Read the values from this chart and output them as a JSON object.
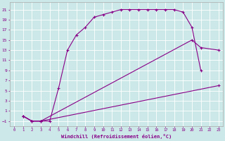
{
  "xlabel": "Windchill (Refroidissement éolien,°C)",
  "bg_color": "#cce8e8",
  "line_color": "#880088",
  "xlim": [
    -0.5,
    23.5
  ],
  "ylim": [
    -2,
    22.5
  ],
  "xticks": [
    0,
    1,
    2,
    3,
    4,
    5,
    6,
    7,
    8,
    9,
    10,
    11,
    12,
    13,
    14,
    15,
    16,
    17,
    18,
    19,
    20,
    21,
    22,
    23
  ],
  "yticks": [
    -1,
    1,
    3,
    5,
    7,
    9,
    11,
    13,
    15,
    17,
    19,
    21
  ],
  "curve1_x": [
    1,
    2,
    3,
    4,
    5,
    6,
    7,
    8,
    9,
    10,
    11,
    12,
    13,
    14,
    15,
    16,
    17,
    18,
    19,
    20,
    21
  ],
  "curve1_y": [
    0,
    -1,
    -1,
    -1,
    5.5,
    13,
    16,
    17.5,
    19.5,
    20,
    20.5,
    21,
    21,
    21,
    21,
    21,
    21,
    21,
    20.5,
    17.5,
    9
  ],
  "curve2_x": [
    1,
    2,
    3,
    23
  ],
  "curve2_y": [
    0,
    -1,
    -1,
    6
  ],
  "curve3_x": [
    1,
    2,
    3,
    20,
    21,
    23
  ],
  "curve3_y": [
    0,
    -1,
    -1,
    15,
    13.5,
    13
  ]
}
